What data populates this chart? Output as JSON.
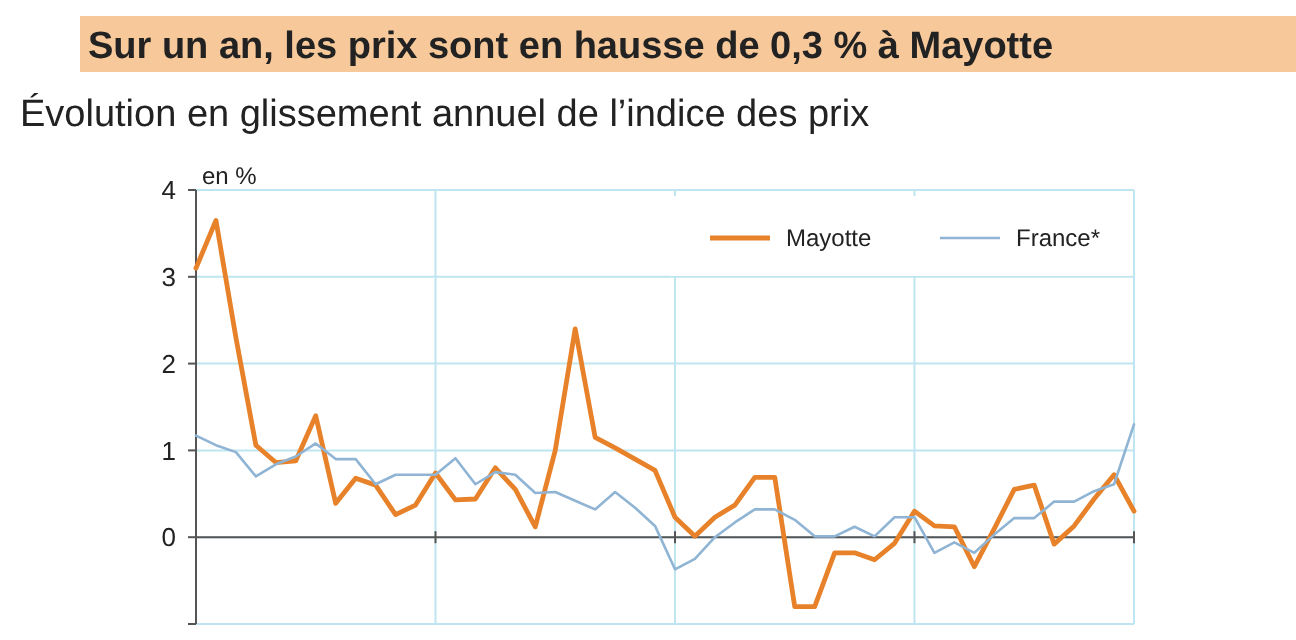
{
  "chart_data": {
    "type": "line",
    "title": "Sur un an, les prix sont en hausse de 0,3 % à Mayotte",
    "subtitle": "Évolution en glissement annuel de l’indice des prix",
    "ylabel": "en %",
    "categories": [
      null,
      null,
      null,
      null,
      null,
      null,
      null,
      null,
      null,
      null,
      null,
      null,
      null,
      null,
      null,
      null,
      null,
      null,
      null,
      null,
      null,
      null,
      null,
      null,
      null,
      null,
      null,
      null,
      null,
      null,
      null,
      null,
      null,
      null,
      null,
      null,
      null,
      null,
      null,
      null,
      null,
      null,
      null,
      null,
      null,
      null,
      null,
      null
    ],
    "series": [
      {
        "name": "Mayotte",
        "color": "#e8822a",
        "values": [
          3.1,
          3.65,
          2.3,
          1.06,
          0.86,
          0.88,
          1.4,
          0.39,
          0.68,
          0.6,
          0.26,
          0.37,
          0.74,
          0.43,
          0.44,
          0.8,
          0.55,
          0.12,
          1.0,
          2.4,
          1.15,
          1.03,
          0.9,
          0.77,
          0.23,
          0.01,
          0.23,
          0.37,
          0.69,
          0.69,
          -0.8,
          -0.8,
          -0.18,
          -0.18,
          -0.26,
          -0.07,
          0.3,
          0.13,
          0.12,
          -0.34,
          0.1,
          0.55,
          0.6,
          -0.08,
          0.13,
          0.44,
          0.72,
          0.3
        ]
      },
      {
        "name": "France*",
        "color": "#8fb4d4",
        "values": [
          1.17,
          1.06,
          0.98,
          0.7,
          0.84,
          0.93,
          1.08,
          0.9,
          0.9,
          0.61,
          0.72,
          0.72,
          0.72,
          0.91,
          0.61,
          0.75,
          0.72,
          0.51,
          0.52,
          0.42,
          0.32,
          0.52,
          0.34,
          0.13,
          -0.37,
          -0.25,
          0,
          0.17,
          0.32,
          0.32,
          0.2,
          0.01,
          0.01,
          0.12,
          0.01,
          0.23,
          0.23,
          -0.18,
          -0.06,
          -0.18,
          0.03,
          0.22,
          0.22,
          0.41,
          0.41,
          0.53,
          0.61,
          1.3
        ]
      }
    ],
    "ylim": [
      -1,
      4
    ],
    "yticks": [
      {
        "value": -1,
        "label": null
      },
      0,
      1,
      2,
      3,
      4
    ],
    "grid": true,
    "legend": "top right"
  }
}
